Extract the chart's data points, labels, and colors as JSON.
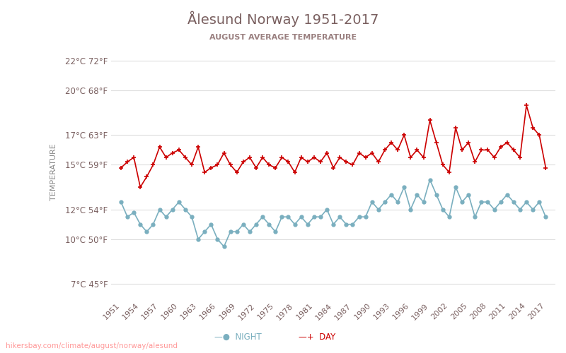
{
  "title": "Ålesund Norway 1951-2017",
  "subtitle": "AUGUST AVERAGE TEMPERATURE",
  "ylabel": "TEMPERATURE",
  "watermark": "hikersbay.com/climate/august/norway/alesund",
  "years": [
    1951,
    1952,
    1953,
    1954,
    1955,
    1956,
    1957,
    1958,
    1959,
    1960,
    1961,
    1962,
    1963,
    1964,
    1965,
    1966,
    1967,
    1968,
    1969,
    1970,
    1971,
    1972,
    1973,
    1974,
    1975,
    1976,
    1977,
    1978,
    1979,
    1980,
    1981,
    1982,
    1983,
    1984,
    1985,
    1986,
    1987,
    1988,
    1989,
    1990,
    1991,
    1992,
    1993,
    1994,
    1995,
    1996,
    1997,
    1998,
    1999,
    2000,
    2001,
    2002,
    2003,
    2004,
    2005,
    2006,
    2007,
    2008,
    2009,
    2010,
    2011,
    2012,
    2013,
    2014,
    2015,
    2016,
    2017
  ],
  "day": [
    14.8,
    15.2,
    15.5,
    13.5,
    14.2,
    15.0,
    16.2,
    15.5,
    15.8,
    16.0,
    15.5,
    15.0,
    16.2,
    14.5,
    14.8,
    15.0,
    15.8,
    15.0,
    14.5,
    15.2,
    15.5,
    14.8,
    15.5,
    15.0,
    14.8,
    15.5,
    15.2,
    14.5,
    15.5,
    15.2,
    15.5,
    15.2,
    15.8,
    14.8,
    15.5,
    15.2,
    15.0,
    15.8,
    15.5,
    15.8,
    15.2,
    16.0,
    16.5,
    16.0,
    17.0,
    15.5,
    16.0,
    15.5,
    18.0,
    16.5,
    15.0,
    14.5,
    17.5,
    16.0,
    16.5,
    15.2,
    16.0,
    16.0,
    15.5,
    16.2,
    16.5,
    16.0,
    15.5,
    19.0,
    17.5,
    17.0,
    14.8
  ],
  "night": [
    12.5,
    11.5,
    11.8,
    11.0,
    10.5,
    11.0,
    12.0,
    11.5,
    12.0,
    12.5,
    12.0,
    11.5,
    10.0,
    10.5,
    11.0,
    10.0,
    9.5,
    10.5,
    10.5,
    11.0,
    10.5,
    11.0,
    11.5,
    11.0,
    10.5,
    11.5,
    11.5,
    11.0,
    11.5,
    11.0,
    11.5,
    11.5,
    12.0,
    11.0,
    11.5,
    11.0,
    11.0,
    11.5,
    11.5,
    12.5,
    12.0,
    12.5,
    13.0,
    12.5,
    13.5,
    12.0,
    13.0,
    12.5,
    14.0,
    13.0,
    12.0,
    11.5,
    13.5,
    12.5,
    13.0,
    11.5,
    12.5,
    12.5,
    12.0,
    12.5,
    13.0,
    12.5,
    12.0,
    12.5,
    12.0,
    12.5,
    11.5
  ],
  "yticks_c": [
    7,
    10,
    12,
    15,
    17,
    20,
    22
  ],
  "yticks_f": [
    45,
    50,
    54,
    59,
    63,
    68,
    72
  ],
  "xtick_years": [
    1951,
    1954,
    1957,
    1960,
    1963,
    1966,
    1969,
    1972,
    1975,
    1978,
    1981,
    1984,
    1987,
    1990,
    1993,
    1996,
    1999,
    2002,
    2005,
    2008,
    2011,
    2014,
    2017
  ],
  "day_color": "#cc0000",
  "night_color": "#7aafbf",
  "grid_color": "#dddddd",
  "bg_color": "#ffffff",
  "title_color": "#7a6060",
  "subtitle_color": "#9a8080",
  "ylabel_color": "#888888",
  "tick_color": "#7a6060",
  "watermark_color": "#ff9999",
  "legend_night_color": "#7aafbf",
  "legend_day_color": "#cc0000"
}
